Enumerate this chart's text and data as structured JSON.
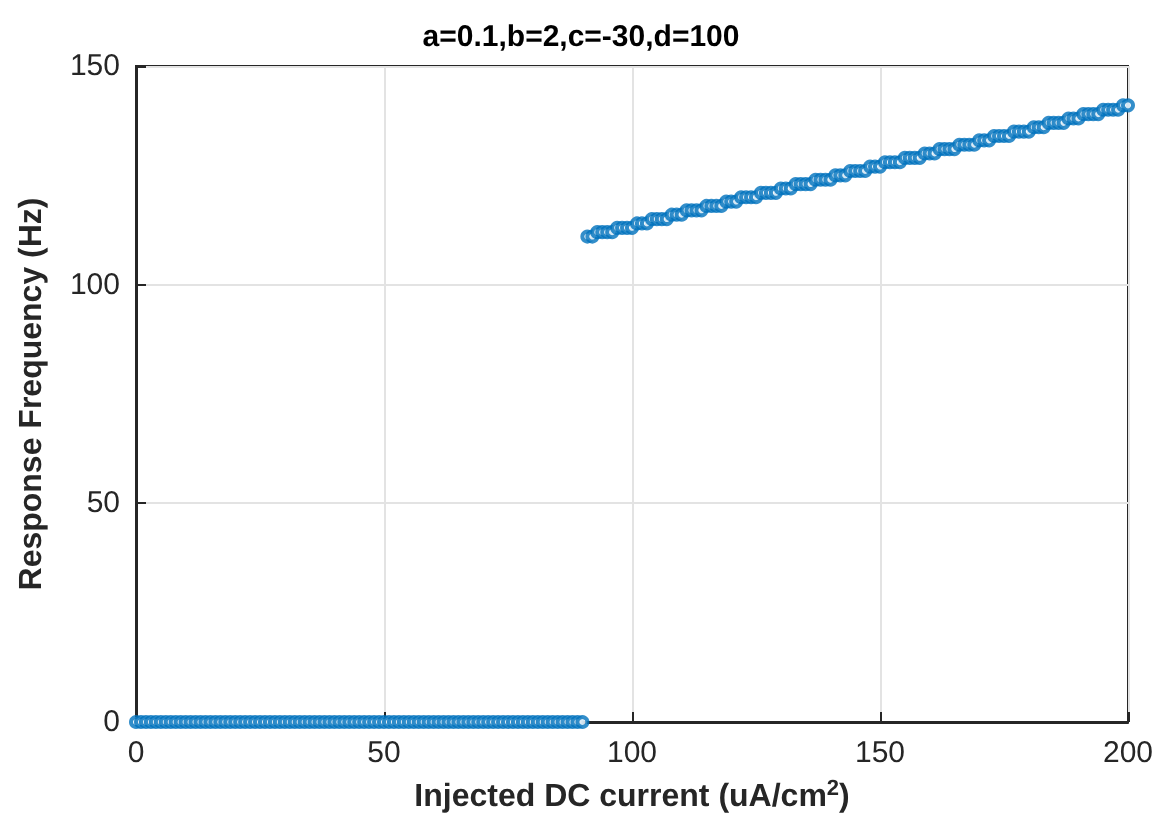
{
  "chart_data": {
    "type": "scatter",
    "title": "a=0.1,b=2,c=-30,d=100",
    "xlabel": "Injected DC current (uA/cm$^{2}$)",
    "ylabel": "Response Frequency (Hz)",
    "x": [
      0,
      1,
      2,
      3,
      4,
      5,
      6,
      7,
      8,
      9,
      10,
      11,
      12,
      13,
      14,
      15,
      16,
      17,
      18,
      19,
      20,
      21,
      22,
      23,
      24,
      25,
      26,
      27,
      28,
      29,
      30,
      31,
      32,
      33,
      34,
      35,
      36,
      37,
      38,
      39,
      40,
      41,
      42,
      43,
      44,
      45,
      46,
      47,
      48,
      49,
      50,
      51,
      52,
      53,
      54,
      55,
      56,
      57,
      58,
      59,
      60,
      61,
      62,
      63,
      64,
      65,
      66,
      67,
      68,
      69,
      70,
      71,
      72,
      73,
      74,
      75,
      76,
      77,
      78,
      79,
      80,
      81,
      82,
      83,
      84,
      85,
      86,
      87,
      88,
      89,
      90,
      91,
      92,
      93,
      94,
      95,
      96,
      97,
      98,
      99,
      100,
      101,
      102,
      103,
      104,
      105,
      106,
      107,
      108,
      109,
      110,
      111,
      112,
      113,
      114,
      115,
      116,
      117,
      118,
      119,
      120,
      121,
      122,
      123,
      124,
      125,
      126,
      127,
      128,
      129,
      130,
      131,
      132,
      133,
      134,
      135,
      136,
      137,
      138,
      139,
      140,
      141,
      142,
      143,
      144,
      145,
      146,
      147,
      148,
      149,
      150,
      151,
      152,
      153,
      154,
      155,
      156,
      157,
      158,
      159,
      160,
      161,
      162,
      163,
      164,
      165,
      166,
      167,
      168,
      169,
      170,
      171,
      172,
      173,
      174,
      175,
      176,
      177,
      178,
      179,
      180,
      181,
      182,
      183,
      184,
      185,
      186,
      187,
      188,
      189,
      190,
      191,
      192,
      193,
      194,
      195,
      196,
      197,
      198,
      199,
      200
    ],
    "series": [
      {
        "color": "#0072bd",
        "values": [
          0,
          0,
          0,
          0,
          0,
          0,
          0,
          0,
          0,
          0,
          0,
          0,
          0,
          0,
          0,
          0,
          0,
          0,
          0,
          0,
          0,
          0,
          0,
          0,
          0,
          0,
          0,
          0,
          0,
          0,
          0,
          0,
          0,
          0,
          0,
          0,
          0,
          0,
          0,
          0,
          0,
          0,
          0,
          0,
          0,
          0,
          0,
          0,
          0,
          0,
          0,
          0,
          0,
          0,
          0,
          0,
          0,
          0,
          0,
          0,
          0,
          0,
          0,
          0,
          0,
          0,
          0,
          0,
          0,
          0,
          0,
          0,
          0,
          0,
          0,
          0,
          0,
          0,
          0,
          0,
          0,
          0,
          0,
          0,
          0,
          0,
          0,
          0,
          0,
          0,
          0,
          111,
          111,
          112,
          112,
          112,
          112,
          113,
          113,
          113,
          113,
          114,
          114,
          114,
          115,
          115,
          115,
          115,
          116,
          116,
          116,
          117,
          117,
          117,
          117,
          118,
          118,
          118,
          118,
          119,
          119,
          119,
          120,
          120,
          120,
          120,
          121,
          121,
          121,
          121,
          122,
          122,
          122,
          123,
          123,
          123,
          123,
          124,
          124,
          124,
          124,
          125,
          125,
          125,
          126,
          126,
          126,
          126,
          127,
          127,
          127,
          128,
          128,
          128,
          128,
          129,
          129,
          129,
          129,
          130,
          130,
          130,
          131,
          131,
          131,
          131,
          132,
          132,
          132,
          132,
          133,
          133,
          133,
          134,
          134,
          134,
          134,
          135,
          135,
          135,
          135,
          136,
          136,
          136,
          137,
          137,
          137,
          137,
          138,
          138,
          138,
          139,
          139,
          139,
          139,
          140,
          140,
          140,
          140,
          141,
          141
        ]
      }
    ],
    "xlim": [
      0,
      200
    ],
    "xticks": [
      0,
      50,
      100,
      150,
      200
    ],
    "ylim": [
      0,
      150
    ],
    "yticks": [
      0,
      50,
      100,
      150
    ],
    "grid": true,
    "marker": "circle"
  }
}
